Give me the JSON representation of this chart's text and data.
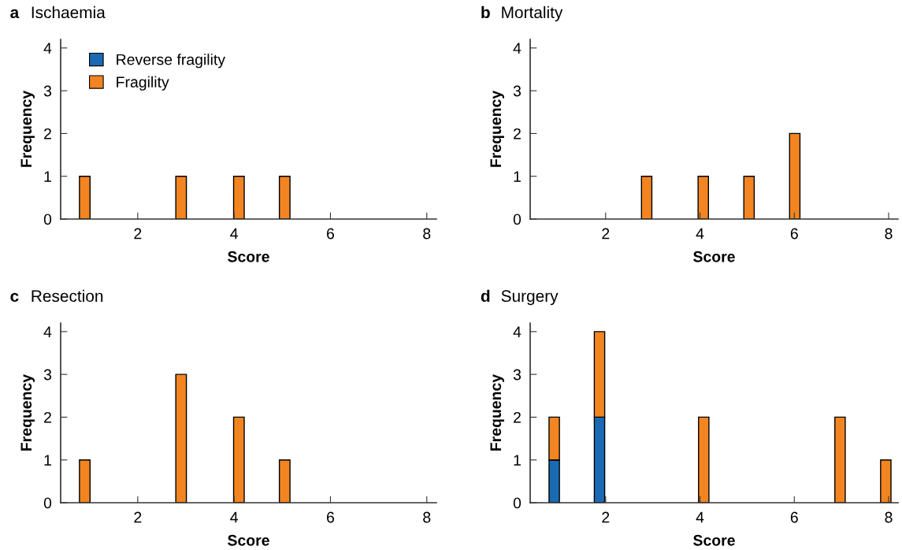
{
  "chart_data": [
    {
      "type": "bar",
      "title": "Ischaemia",
      "annotations": [
        "a"
      ],
      "xlabel": "Score",
      "ylabel": "Frequency",
      "x": [
        0.9,
        2.9,
        4.1,
        5.05
      ],
      "stacked": true,
      "legend": "top left",
      "series": [
        {
          "name": "Reverse fragility",
          "color": "#1a6ab3",
          "values": [
            null,
            null,
            null,
            null
          ]
        },
        {
          "name": "Fragility",
          "color": "#f28522",
          "values": [
            1,
            1,
            1,
            1
          ]
        }
      ],
      "xlim": [
        0.4,
        8.2
      ],
      "ylim": [
        0,
        4.2
      ],
      "xticks": [
        2,
        4,
        6,
        8
      ],
      "yticks": [
        0,
        1,
        2,
        3,
        4
      ],
      "grid": false
    },
    {
      "type": "bar",
      "title": "Mortality",
      "annotations": [
        "b"
      ],
      "xlabel": "Score",
      "ylabel": "Frequency",
      "x": [
        2.87,
        4.07,
        5.04,
        6.01
      ],
      "stacked": true,
      "series": [
        {
          "color": "#f28522",
          "values": [
            1,
            1,
            1,
            2
          ]
        }
      ],
      "xlim": [
        0.4,
        8.2
      ],
      "ylim": [
        0,
        4.2
      ],
      "xticks": [
        2,
        4,
        6,
        8
      ],
      "yticks": [
        0,
        1,
        2,
        3,
        4
      ],
      "grid": false
    },
    {
      "type": "bar",
      "title": "Resection",
      "annotations": [
        "c"
      ],
      "xlabel": "Score",
      "ylabel": "Frequency",
      "x": [
        0.9,
        2.9,
        4.1,
        5.05
      ],
      "stacked": true,
      "series": [
        {
          "color": "#f28522",
          "values": [
            1,
            3,
            2,
            1
          ]
        }
      ],
      "xlim": [
        0.4,
        8.2
      ],
      "ylim": [
        0,
        4.2
      ],
      "xticks": [
        2,
        4,
        6,
        8
      ],
      "yticks": [
        0,
        1,
        2,
        3,
        4
      ],
      "grid": false
    },
    {
      "type": "bar",
      "title": "Surgery",
      "annotations": [
        "d"
      ],
      "xlabel": "Score",
      "ylabel": "Frequency",
      "x": [
        0.91,
        1.87,
        4.08,
        6.97,
        7.94
      ],
      "stacked": true,
      "series": [
        {
          "color": "#1a6ab3",
          "values": [
            1,
            2,
            null,
            null,
            null
          ]
        },
        {
          "color": "#f28522",
          "values": [
            1,
            2,
            2,
            2,
            1
          ]
        }
      ],
      "xlim": [
        0.4,
        8.2
      ],
      "ylim": [
        0,
        4.2
      ],
      "xticks": [
        2,
        4,
        6,
        8
      ],
      "yticks": [
        0,
        1,
        2,
        3,
        4
      ],
      "grid": false
    }
  ]
}
